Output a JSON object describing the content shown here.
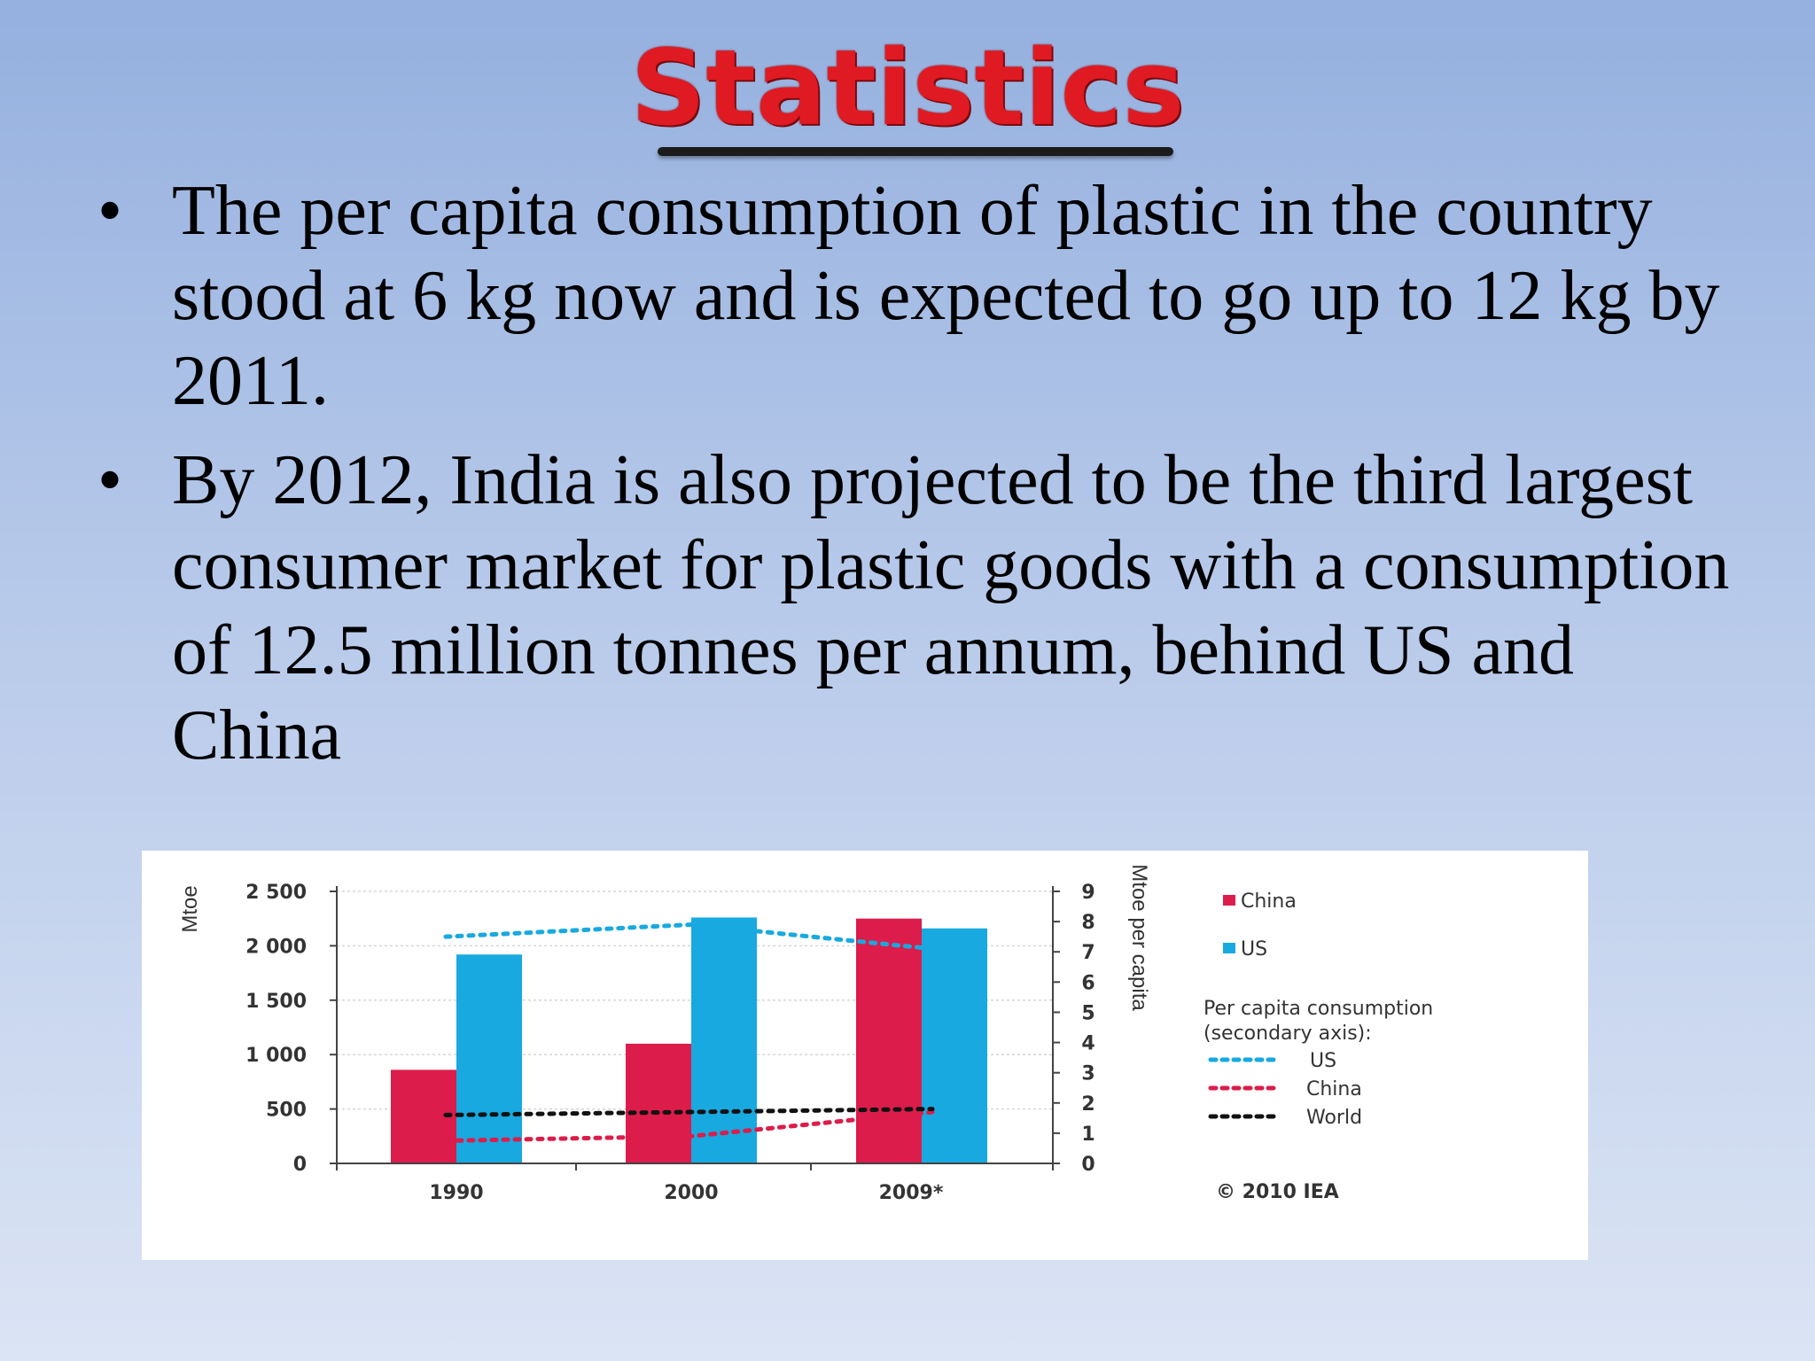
{
  "slide": {
    "title": "Statistics",
    "bullets": [
      {
        "symbol": "•",
        "text": "The per capita consumption of plastic in the country stood at 6 kg now and is expected to go up to 12 kg by 2011."
      },
      {
        "symbol": "•",
        "text": "By 2012, India is also projected to be the third largest consumer market for plastic goods with a consumption of 12.5 million tonnes per annum, behind US and China"
      }
    ],
    "colors": {
      "title": "#e01a22",
      "china": "#dc1c4a",
      "us": "#18a9e0",
      "world": "#111111"
    }
  },
  "chart_data": {
    "type": "bar",
    "categories": [
      "1990",
      "2000",
      "2009*"
    ],
    "series": [
      {
        "name": "China",
        "values": [
          860,
          1100,
          2250
        ],
        "color": "#dc1c4a"
      },
      {
        "name": "US",
        "values": [
          1920,
          2260,
          2160
        ],
        "color": "#18a9e0"
      }
    ],
    "ylabel": "Mtoe",
    "ylim": [
      0,
      2500
    ],
    "yticks": [
      "0",
      "500",
      "1 000",
      "1 500",
      "2 000",
      "2 500"
    ],
    "ytick_values": [
      0,
      500,
      1000,
      1500,
      2000,
      2500
    ],
    "secondary_axis": {
      "label": "Mtoe per capita",
      "ylim": [
        0,
        9
      ],
      "ticks": [
        "0",
        "1",
        "2",
        "3",
        "4",
        "5",
        "6",
        "7",
        "8",
        "9"
      ],
      "series": [
        {
          "name": "US",
          "style": "dotted",
          "color": "#18a9e0",
          "values": [
            7.5,
            7.9,
            7.1
          ]
        },
        {
          "name": "China",
          "style": "dotted",
          "color": "#dc1c4a",
          "values": [
            0.75,
            0.9,
            1.7
          ]
        },
        {
          "name": "World",
          "style": "dotted",
          "color": "#111111",
          "values": [
            1.6,
            1.7,
            1.8
          ]
        }
      ]
    },
    "legend": {
      "position": "right",
      "bar_entries": [
        "China",
        "US"
      ],
      "line_heading_1": "Per capita consumption",
      "line_heading_2": "(secondary axis):",
      "line_entries": [
        "US",
        "China",
        "World"
      ]
    },
    "source": "© 2010 IEA",
    "grid": true
  }
}
